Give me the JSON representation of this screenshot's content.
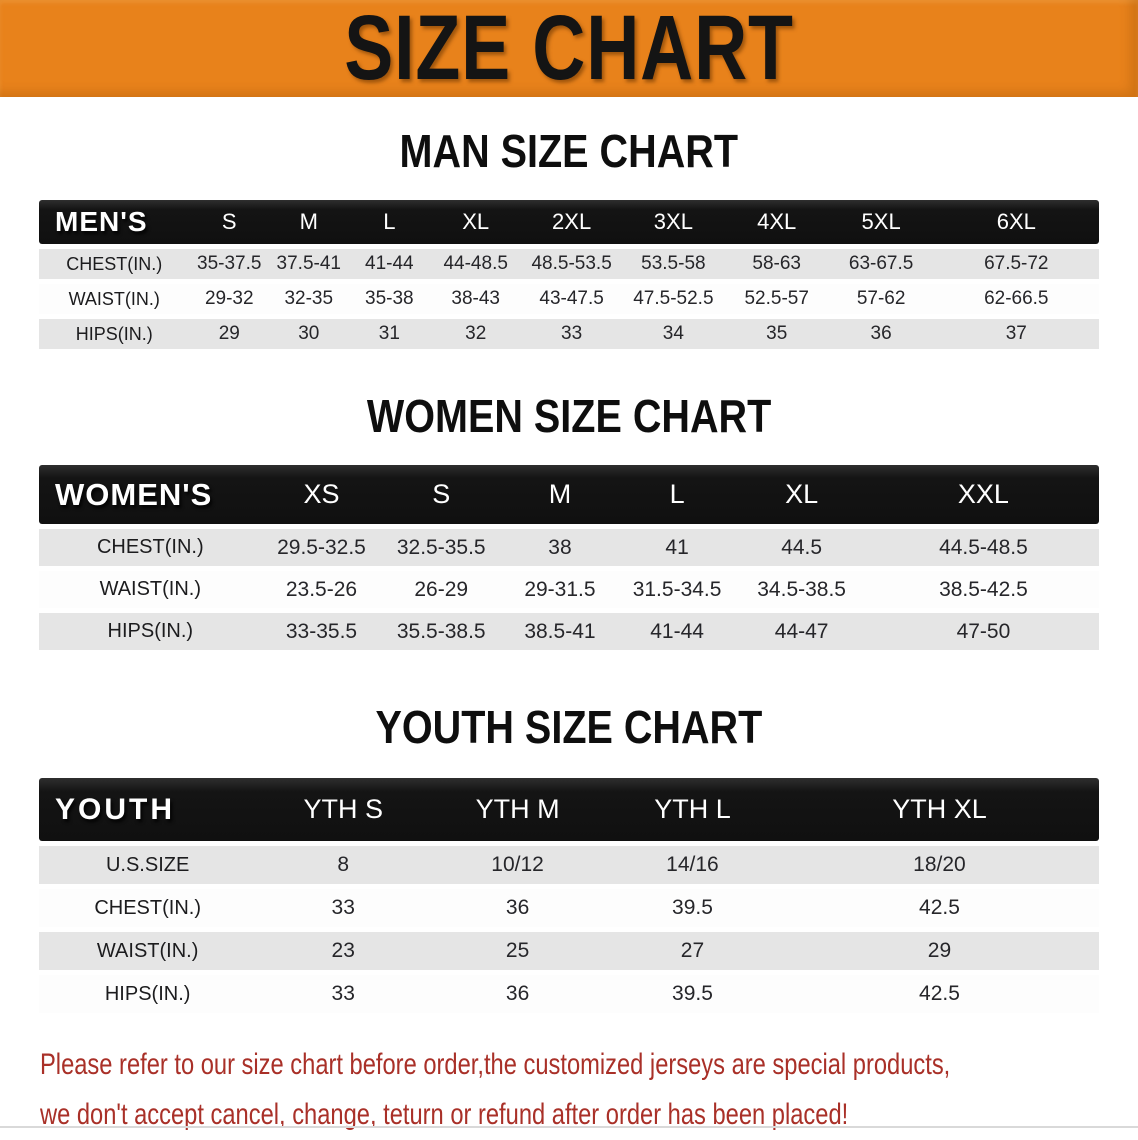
{
  "banner": {
    "title": "SIZE CHART",
    "bg_color": "#e8821b",
    "text_color": "#141414"
  },
  "sections": [
    {
      "heading": "MAN SIZE CHART",
      "header_label": "MEN'S",
      "columns": [
        "S",
        "M",
        "L",
        "XL",
        "2XL",
        "3XL",
        "4XL",
        "5XL",
        "6XL"
      ],
      "rows": [
        {
          "label": "CHEST(IN.)",
          "values": [
            "35-37.5",
            "37.5-41",
            "41-44",
            "44-48.5",
            "48.5-53.5",
            "53.5-58",
            "58-63",
            "63-67.5",
            "67.5-72"
          ]
        },
        {
          "label": "WAIST(IN.)",
          "values": [
            "29-32",
            "32-35",
            "35-38",
            "38-43",
            "43-47.5",
            "47.5-52.5",
            "52.5-57",
            "57-62",
            "62-66.5"
          ]
        },
        {
          "label": "HIPS(IN.)",
          "values": [
            "29",
            "30",
            "31",
            "32",
            "33",
            "34",
            "35",
            "36",
            "37"
          ]
        }
      ]
    },
    {
      "heading": "WOMEN SIZE CHART",
      "header_label": "WOMEN'S",
      "columns": [
        "XS",
        "S",
        "M",
        "L",
        "XL",
        "XXL"
      ],
      "rows": [
        {
          "label": "CHEST(IN.)",
          "values": [
            "29.5-32.5",
            "32.5-35.5",
            "38",
            "41",
            "44.5",
            "44.5-48.5"
          ]
        },
        {
          "label": "WAIST(IN.)",
          "values": [
            "23.5-26",
            "26-29",
            "29-31.5",
            "31.5-34.5",
            "34.5-38.5",
            "38.5-42.5"
          ]
        },
        {
          "label": "HIPS(IN.)",
          "values": [
            "33-35.5",
            "35.5-38.5",
            "38.5-41",
            "41-44",
            "44-47",
            "47-50"
          ]
        }
      ]
    },
    {
      "heading": "YOUTH SIZE CHART",
      "header_label": "YOUTH",
      "columns": [
        "YTH S",
        "YTH M",
        "YTH L",
        "YTH XL"
      ],
      "rows": [
        {
          "label": "U.S.SIZE",
          "values": [
            "8",
            "10/12",
            "14/16",
            "18/20"
          ]
        },
        {
          "label": "CHEST(IN.)",
          "values": [
            "33",
            "36",
            "39.5",
            "42.5"
          ]
        },
        {
          "label": "WAIST(IN.)",
          "values": [
            "23",
            "25",
            "27",
            "29"
          ]
        },
        {
          "label": "HIPS(IN.)",
          "values": [
            "33",
            "36",
            "39.5",
            "42.5"
          ]
        }
      ]
    }
  ],
  "footer": {
    "line1": "Please refer to our size chart before order,the customized jerseys are special products,",
    "line2": "we don't accept cancel, change, teturn or refund after order has been placed!",
    "color": "#a93028"
  }
}
